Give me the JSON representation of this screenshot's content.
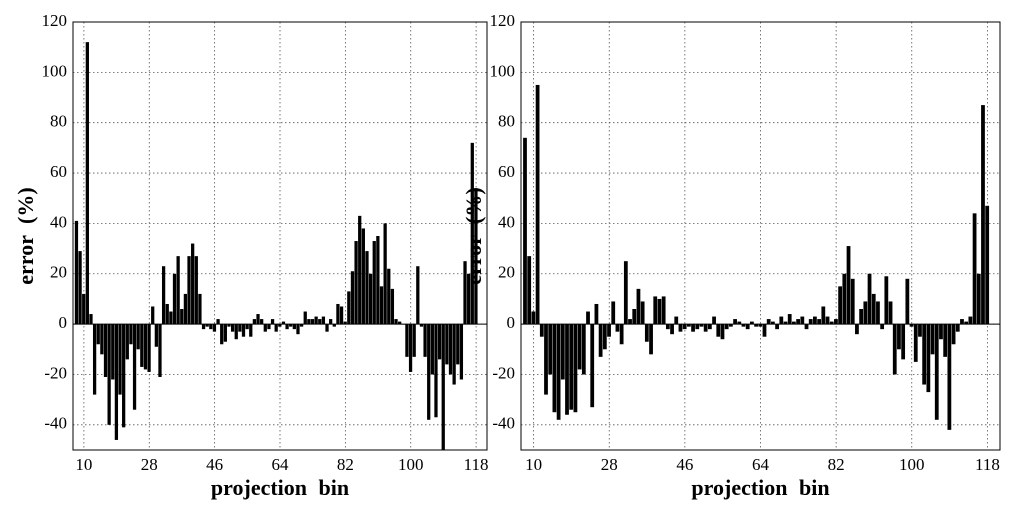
{
  "chart_data": [
    {
      "type": "bar",
      "xlabel": "projection bin",
      "ylabel": "error (%)",
      "color": "#000000",
      "grid": true,
      "xlim": [
        7,
        121
      ],
      "ylim": [
        -50,
        120
      ],
      "xticks": [
        10,
        28,
        46,
        64,
        82,
        100,
        118
      ],
      "yticks": [
        -40,
        -20,
        0,
        20,
        40,
        60,
        80,
        100,
        120
      ],
      "x": [
        8,
        9,
        10,
        11,
        12,
        13,
        14,
        15,
        16,
        17,
        18,
        19,
        20,
        21,
        22,
        23,
        24,
        25,
        26,
        27,
        28,
        29,
        30,
        31,
        32,
        33,
        34,
        35,
        36,
        37,
        38,
        39,
        40,
        41,
        42,
        43,
        44,
        45,
        46,
        47,
        48,
        49,
        50,
        51,
        52,
        53,
        54,
        55,
        56,
        57,
        58,
        59,
        60,
        61,
        62,
        63,
        64,
        65,
        66,
        67,
        68,
        69,
        70,
        71,
        72,
        73,
        74,
        75,
        76,
        77,
        78,
        79,
        80,
        81,
        82,
        83,
        84,
        85,
        86,
        87,
        88,
        89,
        90,
        91,
        92,
        93,
        94,
        95,
        96,
        97,
        98,
        99,
        100,
        101,
        102,
        103,
        104,
        105,
        106,
        107,
        108,
        109,
        110,
        111,
        112,
        113,
        114,
        115,
        116,
        117,
        118
      ],
      "values": [
        41,
        29,
        12,
        112,
        4,
        -28,
        -8,
        -12,
        -21,
        -40,
        -22,
        -46,
        -28,
        -41,
        -14,
        -8,
        -34,
        -10,
        -17,
        -18,
        -19,
        7,
        -9,
        -21,
        23,
        8,
        5,
        20,
        27,
        6,
        12,
        27,
        32,
        27,
        12,
        -2,
        -1,
        -2,
        -3,
        2,
        -8,
        -7,
        -1,
        -3,
        -6,
        -3,
        -5,
        -2,
        -5,
        2,
        4,
        2,
        -3,
        -2,
        2,
        -3,
        -1,
        1,
        -2,
        -1,
        -2,
        -4,
        -1,
        5,
        2,
        2,
        3,
        2,
        3,
        -3,
        2,
        -1,
        8,
        7,
        1,
        13,
        21,
        33,
        43,
        38,
        29,
        20,
        33,
        35,
        15,
        40,
        22,
        14,
        2,
        1,
        0,
        -13,
        -19,
        -13,
        23,
        -1,
        -13,
        -38,
        -20,
        -37,
        -14,
        -50,
        -16,
        -20,
        -24,
        -16,
        -22,
        25,
        20,
        72,
        54
      ]
    },
    {
      "type": "bar",
      "xlabel": "projection bin",
      "ylabel": "error (%)",
      "color": "#000000",
      "grid": true,
      "xlim": [
        7,
        121
      ],
      "ylim": [
        -50,
        120
      ],
      "xticks": [
        10,
        28,
        46,
        64,
        82,
        100,
        118
      ],
      "yticks": [
        -40,
        -20,
        0,
        20,
        40,
        60,
        80,
        100,
        120
      ],
      "x": [
        8,
        9,
        10,
        11,
        12,
        13,
        14,
        15,
        16,
        17,
        18,
        19,
        20,
        21,
        22,
        23,
        24,
        25,
        26,
        27,
        28,
        29,
        30,
        31,
        32,
        33,
        34,
        35,
        36,
        37,
        38,
        39,
        40,
        41,
        42,
        43,
        44,
        45,
        46,
        47,
        48,
        49,
        50,
        51,
        52,
        53,
        54,
        55,
        56,
        57,
        58,
        59,
        60,
        61,
        62,
        63,
        64,
        65,
        66,
        67,
        68,
        69,
        70,
        71,
        72,
        73,
        74,
        75,
        76,
        77,
        78,
        79,
        80,
        81,
        82,
        83,
        84,
        85,
        86,
        87,
        88,
        89,
        90,
        91,
        92,
        93,
        94,
        95,
        96,
        97,
        98,
        99,
        100,
        101,
        102,
        103,
        104,
        105,
        106,
        107,
        108,
        109,
        110,
        111,
        112,
        113,
        114,
        115,
        116,
        117,
        118
      ],
      "values": [
        74,
        27,
        5,
        95,
        -5,
        -28,
        -20,
        -35,
        -38,
        -22,
        -36,
        -34,
        -35,
        -18,
        -20,
        5,
        -33,
        8,
        -13,
        -10,
        -5,
        9,
        -3,
        -8,
        25,
        2,
        6,
        14,
        9,
        -7,
        -12,
        11,
        10,
        11,
        -2,
        -4,
        3,
        -3,
        -2,
        -1,
        -3,
        -2,
        -1,
        -3,
        -2,
        3,
        -5,
        -6,
        -2,
        -1,
        2,
        1,
        -1,
        -2,
        1,
        -1,
        -1,
        -5,
        2,
        1,
        -2,
        3,
        1,
        4,
        1,
        2,
        3,
        -2,
        2,
        3,
        2,
        7,
        3,
        1,
        2,
        15,
        20,
        31,
        18,
        -4,
        6,
        9,
        20,
        12,
        9,
        -2,
        19,
        9,
        -20,
        -10,
        -14,
        18,
        -1,
        -15,
        -5,
        -24,
        -27,
        -12,
        -38,
        -6,
        -13,
        -42,
        -8,
        -3,
        2,
        1,
        3,
        44,
        20,
        87,
        47
      ]
    }
  ]
}
